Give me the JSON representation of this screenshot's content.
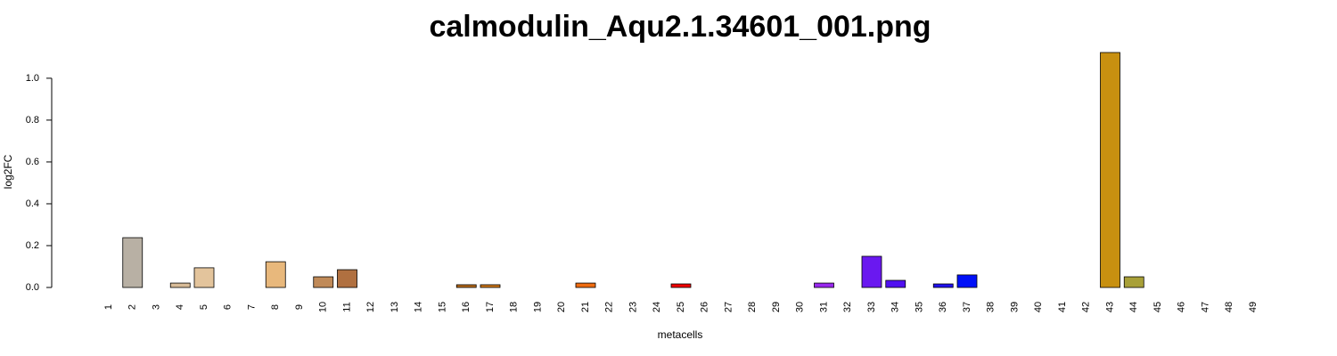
{
  "chart_data": {
    "type": "bar",
    "title": "calmodulin_Aqu2.1.34601_001.png",
    "x_label": "metacells",
    "y_label": "log2FC",
    "categories": [
      "1",
      "2",
      "3",
      "4",
      "5",
      "6",
      "7",
      "8",
      "9",
      "10",
      "11",
      "12",
      "13",
      "14",
      "15",
      "16",
      "17",
      "18",
      "19",
      "20",
      "21",
      "22",
      "23",
      "24",
      "25",
      "26",
      "27",
      "28",
      "29",
      "30",
      "31",
      "32",
      "33",
      "34",
      "35",
      "36",
      "37",
      "38",
      "39",
      "40",
      "41",
      "42",
      "43",
      "44",
      "45",
      "46",
      "47",
      "48",
      "49"
    ],
    "values": [
      0,
      0.238,
      0,
      0.021,
      0.094,
      0,
      0,
      0.123,
      0,
      0.051,
      0.085,
      0,
      0,
      0,
      0,
      0.013,
      0.013,
      0,
      0,
      0,
      0.021,
      0,
      0,
      0,
      0.017,
      0,
      0,
      0,
      0,
      0,
      0.021,
      0,
      0.149,
      0.034,
      0,
      0.017,
      0.06,
      0,
      0,
      0,
      0,
      0,
      1.123,
      0.051,
      0,
      0,
      0,
      0,
      0
    ],
    "colors": [
      "#ffffff",
      "#b8b0a4",
      "#ffffff",
      "#d8bc98",
      "#e3c49c",
      "#ffffff",
      "#ffffff",
      "#e8b87c",
      "#ffffff",
      "#c08a58",
      "#b07040",
      "#ffffff",
      "#ffffff",
      "#ffffff",
      "#ffffff",
      "#b86a18",
      "#d07818",
      "#ffffff",
      "#ffffff",
      "#ffffff",
      "#f06c10",
      "#ffffff",
      "#ffffff",
      "#ffffff",
      "#f00000",
      "#ffffff",
      "#ffffff",
      "#ffffff",
      "#ffffff",
      "#ffffff",
      "#9a28f0",
      "#ffffff",
      "#6a18f0",
      "#5010f0",
      "#ffffff",
      "#2010f0",
      "#0010f8",
      "#ffffff",
      "#ffffff",
      "#ffffff",
      "#ffffff",
      "#ffffff",
      "#c89010",
      "#a8a038",
      "#ffffff",
      "#ffffff",
      "#ffffff",
      "#ffffff",
      "#ffffff"
    ],
    "ylim": [
      0,
      1.123
    ],
    "yticks": [
      {
        "value": 0,
        "label": "0.0"
      },
      {
        "value": 0.2,
        "label": "0.2"
      },
      {
        "value": 0.4,
        "label": "0.4"
      },
      {
        "value": 0.6,
        "label": "0.6"
      },
      {
        "value": 0.8,
        "label": "0.8"
      },
      {
        "value": 1,
        "label": "1.0"
      }
    ]
  }
}
